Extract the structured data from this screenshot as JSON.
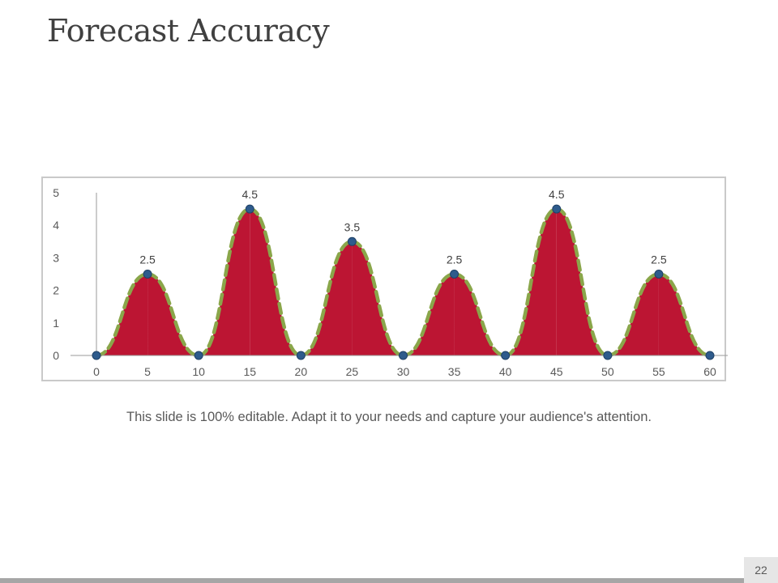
{
  "slide": {
    "title": "Forecast Accuracy",
    "caption": "This slide is 100% editable. Adapt it to your needs and capture your audience's attention.",
    "page_number": "22"
  },
  "colors": {
    "area_fill": "#bc1533",
    "dashed_line": "#8aa64a",
    "marker": "#2e5b8c",
    "axis": "#9a9a9a",
    "frame": "#c9c9c9"
  },
  "chart_data": {
    "type": "area",
    "title": "",
    "xlabel": "",
    "ylabel": "",
    "xlim": [
      0,
      60
    ],
    "ylim": [
      0,
      5
    ],
    "x_ticks": [
      0,
      5,
      10,
      15,
      20,
      25,
      30,
      35,
      40,
      45,
      50,
      55,
      60
    ],
    "y_ticks": [
      0,
      1,
      2,
      3,
      4,
      5
    ],
    "grid": false,
    "legend": "none",
    "series": [
      {
        "x": [
          0,
          5,
          10,
          15,
          20,
          25,
          30,
          35,
          40,
          45,
          50,
          55,
          60
        ],
        "y": [
          0,
          2.5,
          0,
          4.5,
          0,
          3.5,
          0,
          2.5,
          0,
          4.5,
          0,
          2.5,
          0
        ]
      }
    ],
    "data_labels": [
      {
        "x": 5,
        "y": 2.5,
        "text": "2.5"
      },
      {
        "x": 15,
        "y": 4.5,
        "text": "4.5"
      },
      {
        "x": 25,
        "y": 3.5,
        "text": "3.5"
      },
      {
        "x": 35,
        "y": 2.5,
        "text": "2.5"
      },
      {
        "x": 45,
        "y": 4.5,
        "text": "4.5"
      },
      {
        "x": 55,
        "y": 2.5,
        "text": "2.5"
      }
    ]
  }
}
